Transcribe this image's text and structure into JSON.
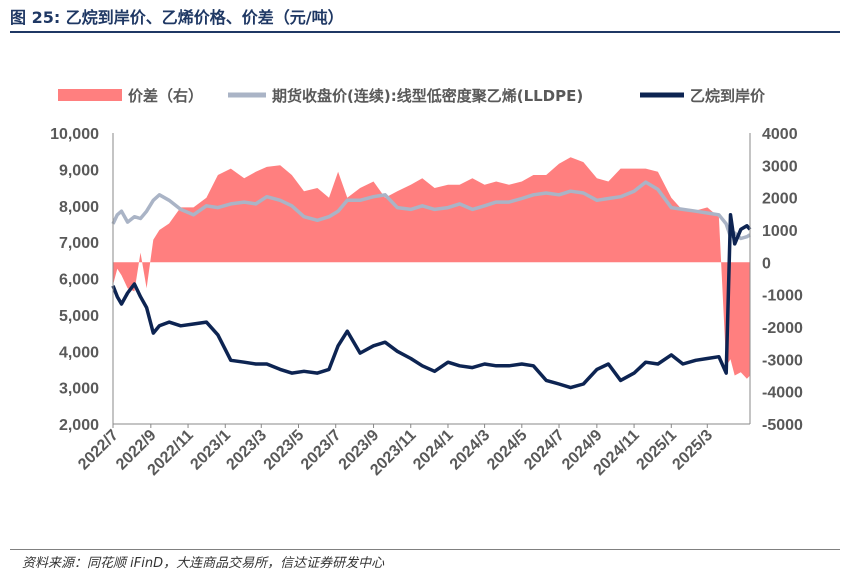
{
  "title": "图 25:  乙烷到岸价、乙烯价格、价差（元/吨）",
  "source": "资料来源：同花顺 iFinD，大连商品交易所，信达证券研发中心",
  "colors": {
    "spread": "#ff7f7f",
    "lldpe": "#aab4c6",
    "ethane": "#0d2452",
    "title": "#1f3864"
  },
  "chart_data": {
    "type": "line",
    "title": "乙烷到岸价、乙烯价格、价差（元/吨）",
    "legend": [
      {
        "name": "价差（右）",
        "style": "area"
      },
      {
        "name": "期货收盘价(连续):线型低密度聚乙烯(LLDPE)",
        "style": "line"
      },
      {
        "name": "乙烷到岸价",
        "style": "line"
      }
    ],
    "legend_position": "top",
    "xlim": [
      "2022-07-01",
      "2025-05-10"
    ],
    "x_tick_labels": [
      "2022/7",
      "2022/9",
      "2022/11",
      "2023/1",
      "2023/3",
      "2023/5",
      "2023/7",
      "2023/9",
      "2023/11",
      "2024/1",
      "2024/3",
      "2024/5",
      "2024/7",
      "2024/9",
      "2024/11",
      "2025/1",
      "2025/3"
    ],
    "y_left": {
      "lim": [
        2000,
        10000
      ],
      "ticks": [
        "2,000",
        "3,000",
        "4,000",
        "5,000",
        "6,000",
        "7,000",
        "8,000",
        "9,000",
        "10,000"
      ]
    },
    "y_right": {
      "lim": [
        -5000,
        4000
      ],
      "ticks": [
        "-5000",
        "-4000",
        "-3000",
        "-2000",
        "-1000",
        "0",
        "1000",
        "2000",
        "3000",
        "4000"
      ]
    },
    "series": [
      {
        "name": "价差（右）",
        "axis": "right",
        "x": [
          "2022-07-01",
          "2022-07-08",
          "2022-07-15",
          "2022-07-25",
          "2022-08-05",
          "2022-08-15",
          "2022-08-25",
          "2022-09-05",
          "2022-09-15",
          "2022-10-01",
          "2022-10-20",
          "2022-11-10",
          "2022-12-01",
          "2022-12-20",
          "2023-01-10",
          "2023-02-01",
          "2023-02-20",
          "2023-03-10",
          "2023-04-01",
          "2023-04-20",
          "2023-05-10",
          "2023-06-01",
          "2023-06-20",
          "2023-07-05",
          "2023-07-20",
          "2023-08-10",
          "2023-09-01",
          "2023-09-20",
          "2023-10-10",
          "2023-11-01",
          "2023-11-20",
          "2023-12-10",
          "2024-01-01",
          "2024-01-20",
          "2024-02-10",
          "2024-03-01",
          "2024-03-20",
          "2024-04-10",
          "2024-05-01",
          "2024-05-20",
          "2024-06-10",
          "2024-07-01",
          "2024-07-20",
          "2024-08-10",
          "2024-09-01",
          "2024-09-20",
          "2024-10-10",
          "2024-11-01",
          "2024-11-20",
          "2024-12-10",
          "2025-01-01",
          "2025-01-20",
          "2025-02-10",
          "2025-03-01",
          "2025-03-20",
          "2025-04-01",
          "2025-04-08",
          "2025-04-15",
          "2025-04-25",
          "2025-05-05",
          "2025-05-10"
        ],
        "values": [
          -700,
          -200,
          -400,
          -800,
          -900,
          300,
          -800,
          700,
          1000,
          1200,
          1700,
          1700,
          2000,
          2700,
          2900,
          2600,
          2800,
          2950,
          3000,
          2700,
          2200,
          2300,
          2000,
          2800,
          2000,
          2300,
          2500,
          2000,
          2200,
          2400,
          2600,
          2300,
          2400,
          2400,
          2600,
          2400,
          2500,
          2400,
          2500,
          2700,
          2700,
          3050,
          3250,
          3100,
          2600,
          2500,
          2900,
          2900,
          2900,
          2800,
          2000,
          1600,
          1600,
          1700,
          1400,
          -3200,
          -3000,
          -3500,
          -3400,
          -3600,
          -3500
        ]
      },
      {
        "name": "期货收盘价(连续):线型低密度聚乙烯(LLDPE)",
        "axis": "left",
        "x": [
          "2022-07-01",
          "2022-07-08",
          "2022-07-15",
          "2022-07-25",
          "2022-08-05",
          "2022-08-15",
          "2022-08-25",
          "2022-09-05",
          "2022-09-15",
          "2022-10-01",
          "2022-10-20",
          "2022-11-10",
          "2022-12-01",
          "2022-12-20",
          "2023-01-10",
          "2023-02-01",
          "2023-02-20",
          "2023-03-10",
          "2023-04-01",
          "2023-04-20",
          "2023-05-10",
          "2023-06-01",
          "2023-06-20",
          "2023-07-05",
          "2023-07-20",
          "2023-08-10",
          "2023-09-01",
          "2023-09-20",
          "2023-10-10",
          "2023-11-01",
          "2023-11-20",
          "2023-12-10",
          "2024-01-01",
          "2024-01-20",
          "2024-02-10",
          "2024-03-01",
          "2024-03-20",
          "2024-04-10",
          "2024-05-01",
          "2024-05-20",
          "2024-06-10",
          "2024-07-01",
          "2024-07-20",
          "2024-08-10",
          "2024-09-01",
          "2024-09-20",
          "2024-10-10",
          "2024-11-01",
          "2024-11-20",
          "2024-12-10",
          "2025-01-01",
          "2025-01-20",
          "2025-02-10",
          "2025-03-01",
          "2025-03-20",
          "2025-04-01",
          "2025-04-08",
          "2025-04-15",
          "2025-04-25",
          "2025-05-05",
          "2025-05-10"
        ],
        "values": [
          7500,
          7750,
          7850,
          7550,
          7700,
          7650,
          7850,
          8150,
          8300,
          8150,
          7900,
          7750,
          8000,
          7950,
          8050,
          8100,
          8050,
          8250,
          8150,
          8000,
          7700,
          7600,
          7700,
          7850,
          8150,
          8150,
          8250,
          8300,
          7950,
          7900,
          8000,
          7900,
          7950,
          8050,
          7900,
          8000,
          8100,
          8100,
          8200,
          8300,
          8350,
          8300,
          8400,
          8350,
          8150,
          8200,
          8250,
          8400,
          8650,
          8450,
          7950,
          7900,
          7850,
          7800,
          7750,
          7500,
          7150,
          7250,
          7100,
          7150,
          7200
        ]
      },
      {
        "name": "乙烷到岸价",
        "axis": "left",
        "x": [
          "2022-07-01",
          "2022-07-08",
          "2022-07-15",
          "2022-07-25",
          "2022-08-05",
          "2022-08-15",
          "2022-08-25",
          "2022-09-05",
          "2022-09-15",
          "2022-10-01",
          "2022-10-20",
          "2022-11-10",
          "2022-12-01",
          "2022-12-20",
          "2023-01-10",
          "2023-02-01",
          "2023-02-20",
          "2023-03-10",
          "2023-04-01",
          "2023-04-20",
          "2023-05-10",
          "2023-06-01",
          "2023-06-20",
          "2023-07-05",
          "2023-07-20",
          "2023-08-10",
          "2023-09-01",
          "2023-09-20",
          "2023-10-10",
          "2023-11-01",
          "2023-11-20",
          "2023-12-10",
          "2024-01-01",
          "2024-01-20",
          "2024-02-10",
          "2024-03-01",
          "2024-03-20",
          "2024-04-10",
          "2024-05-01",
          "2024-05-20",
          "2024-06-10",
          "2024-07-01",
          "2024-07-20",
          "2024-08-10",
          "2024-09-01",
          "2024-09-20",
          "2024-10-10",
          "2024-11-01",
          "2024-11-20",
          "2024-12-10",
          "2025-01-01",
          "2025-01-20",
          "2025-02-10",
          "2025-03-01",
          "2025-03-20",
          "2025-04-01",
          "2025-04-08",
          "2025-04-15",
          "2025-04-25",
          "2025-05-05",
          "2025-05-10"
        ],
        "values": [
          5800,
          5500,
          5300,
          5600,
          5850,
          5500,
          5200,
          4500,
          4700,
          4800,
          4700,
          4750,
          4800,
          4450,
          3750,
          3700,
          3650,
          3650,
          3500,
          3400,
          3450,
          3400,
          3500,
          4150,
          4550,
          3950,
          4150,
          4250,
          4000,
          3800,
          3600,
          3450,
          3700,
          3600,
          3550,
          3650,
          3600,
          3600,
          3650,
          3600,
          3200,
          3100,
          3000,
          3100,
          3500,
          3650,
          3200,
          3400,
          3700,
          3650,
          3900,
          3650,
          3750,
          3800,
          3850,
          3400,
          7750,
          6950,
          7350,
          7450,
          7350
        ]
      }
    ]
  }
}
